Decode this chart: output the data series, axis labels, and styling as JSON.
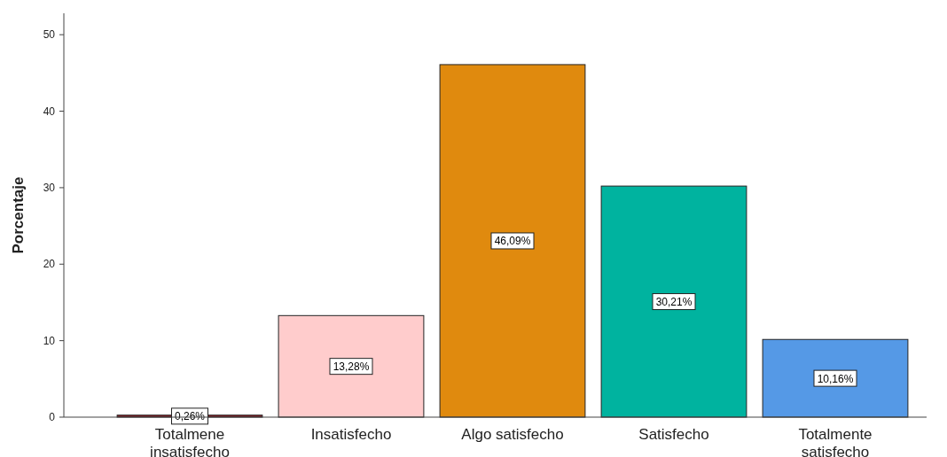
{
  "chart_data": {
    "type": "bar",
    "ylabel": "Porcentaje",
    "categories": [
      "Totalmene insatisfecho",
      "Insatisfecho",
      "Algo satisfecho",
      "Satisfecho",
      "Totalmente satisfecho"
    ],
    "values": [
      0.26,
      13.28,
      46.09,
      30.21,
      10.16
    ],
    "colors": [
      "#8b1c24",
      "#ffcccc",
      "#e08a0e",
      "#00b39f",
      "#5599e6"
    ],
    "value_labels": [
      "0,26%",
      "13,28%",
      "46,09%",
      "30,21%",
      "10,16%"
    ],
    "ylim": [
      0,
      52.8
    ],
    "yticks": [
      0,
      10,
      20,
      30,
      40,
      50
    ]
  }
}
